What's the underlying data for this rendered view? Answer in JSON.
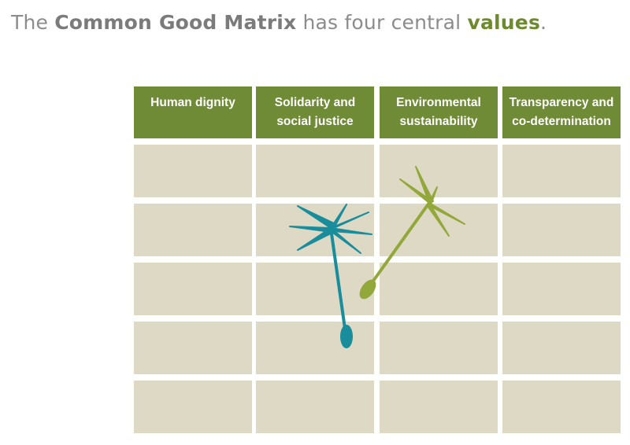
{
  "title": {
    "parts": [
      "The ",
      "Common Good Matrix",
      " has four central ",
      "values",
      "."
    ]
  },
  "table": {
    "headers": [
      "Human dignity",
      "Solidarity and social justice",
      "Environmental sustainability",
      "Transparency and co-determination"
    ]
  }
}
